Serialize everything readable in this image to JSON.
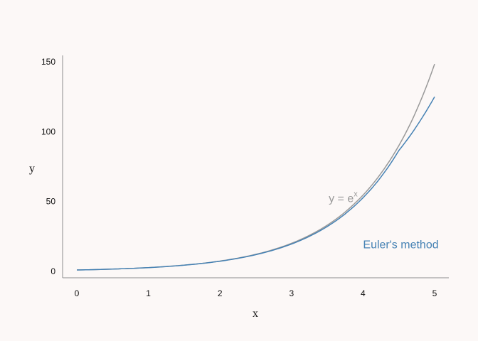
{
  "chart_data": {
    "type": "line",
    "title": "",
    "xlabel": "x",
    "ylabel": "y",
    "xlim": [
      0,
      5
    ],
    "ylim": [
      0,
      150
    ],
    "x_ticks": [
      0,
      1,
      2,
      3,
      4,
      5
    ],
    "y_ticks": [
      0,
      50,
      100,
      150
    ],
    "grid": false,
    "series": [
      {
        "id": "exact",
        "color": "#999999",
        "x": [
          0,
          0.5,
          1,
          1.5,
          2,
          2.5,
          3,
          3.5,
          4,
          4.5,
          5
        ],
        "y": [
          1,
          1.65,
          2.72,
          4.48,
          7.39,
          12.18,
          20.09,
          33.12,
          54.6,
          90.02,
          148.41
        ]
      },
      {
        "id": "euler",
        "color": "#4682b4",
        "x": [
          0,
          0.5,
          1,
          1.5,
          2,
          2.5,
          3,
          3.5,
          4,
          4.5,
          5
        ],
        "y": [
          1,
          1.64,
          2.7,
          4.43,
          7.27,
          11.93,
          19.58,
          32.13,
          52.72,
          86.51,
          125
        ]
      }
    ],
    "annotations": [
      {
        "series": "exact",
        "text_main": "y = e",
        "text_sup": "x",
        "x": 3.52,
        "y": 52,
        "color": "#999999"
      },
      {
        "series": "euler",
        "text": "Euler's method",
        "x": 4.0,
        "y": 19,
        "color": "#4682b4"
      }
    ]
  }
}
